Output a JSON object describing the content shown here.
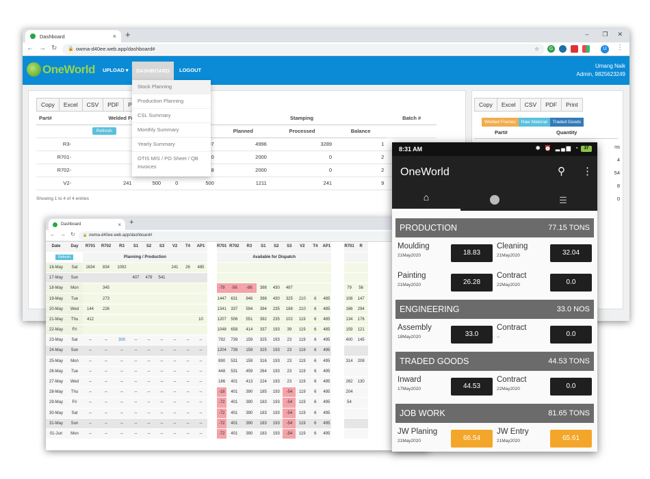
{
  "browser_main": {
    "tab_title": "Dashboard",
    "url": "owma-d40ee.web.app/dashboard#",
    "avatar_letter": "U",
    "ext_letter": "G"
  },
  "app": {
    "logo": "OneWorld",
    "nav": {
      "upload": "UPLOAD",
      "dashboard": "DASHBOARD",
      "logout": "LOGOUT"
    },
    "user_name": "Umang Naik",
    "user_role": "Admin, 9825623249",
    "dropdown": [
      "Stock Planning",
      "Production Planning",
      "CSL Summary",
      "Monthly Summary",
      "Yearly Summary",
      "OTIS MIS / PO Sheet / QB Invoices"
    ],
    "left_buttons": [
      "Copy",
      "Excel",
      "CSV",
      "PDF",
      "P"
    ],
    "right_buttons": [
      "Copy",
      "Excel",
      "CSV",
      "PDF",
      "Print"
    ],
    "refresh": "Refresh",
    "headers": {
      "part": "Part#",
      "welded": "Welded Frames",
      "total": "Total",
      "stamping": "Stamping",
      "planned": "Planned",
      "processed": "Processed",
      "balance": "Balance",
      "batch": "Batch #"
    },
    "rows": [
      {
        "part": "R3-",
        "c1": "",
        "c2": "",
        "c3": "2",
        "total": "1707",
        "planned": "4996",
        "processed": "3289",
        "balance": "1"
      },
      {
        "part": "R701-",
        "c1": "",
        "c2": "",
        "c3": "0",
        "total": "0",
        "planned": "2000",
        "processed": "0",
        "balance": "2"
      },
      {
        "part": "R702-",
        "c1": "",
        "c2": "",
        "c3": "8",
        "total": "-8",
        "planned": "2000",
        "processed": "0",
        "balance": "2"
      },
      {
        "part": "V2-",
        "c1": "241",
        "c2": "500",
        "c3": "0",
        "total": "500",
        "planned": "1211",
        "processed": "241",
        "balance": "9"
      }
    ],
    "showing": "Showing 1 to 4 of 4 entries",
    "filters": [
      "Welded Frames",
      "Raw Material",
      "Traded Goods"
    ],
    "right_headers": {
      "part": "Part#",
      "qty": "Quantity"
    },
    "right_partial": [
      "ns",
      "4",
      "54",
      "8",
      "0"
    ]
  },
  "browser_second": {
    "tab_title": "Dashboard",
    "url": "owma-d40ee.web.app/dashboard#",
    "refresh": "Refresh",
    "hdr_date": "Date",
    "hdr_day": "Day",
    "cols_a": [
      "R701",
      "R702",
      "R3",
      "S1",
      "S2",
      "S3",
      "V2",
      "T4",
      "AP1"
    ],
    "cols_b": [
      "R701",
      "R702",
      "R3",
      "S1",
      "S2",
      "S3",
      "V2",
      "T4",
      "AP1"
    ],
    "cols_c": [
      "R701",
      "R"
    ],
    "group_a": "Planning / Production",
    "group_b": "Available for Dispatch",
    "rows": [
      {
        "date": "16-May",
        "day": "Sat",
        "a": [
          "1634",
          "834",
          "1092",
          "",
          "",
          "",
          "241",
          "26",
          "485"
        ],
        "b": [
          "",
          "",
          "",
          "",
          "",
          "",
          "",
          "",
          ""
        ],
        "c": [
          "",
          ""
        ]
      },
      {
        "date": "17-May",
        "day": "Sun",
        "a": [
          "",
          "",
          "",
          "407",
          "479",
          "541",
          "",
          "",
          ""
        ],
        "b": [
          "",
          "",
          "",
          "",
          "",
          "",
          "",
          "",
          ""
        ],
        "c": [
          "",
          ""
        ]
      },
      {
        "date": "18-May",
        "day": "Mon",
        "a": [
          "",
          "345",
          "",
          "",
          "",
          "",
          "",
          "",
          ""
        ],
        "b": [
          "-79",
          "-56",
          "-86",
          "398",
          "430",
          "497",
          "",
          "",
          ""
        ],
        "c": [
          "79",
          "56"
        ]
      },
      {
        "date": "19-May",
        "day": "Tue",
        "a": [
          "",
          "273",
          "",
          "",
          "",
          "",
          "",
          "",
          ""
        ],
        "b": [
          "1447",
          "631",
          "946",
          "398",
          "430",
          "325",
          "210",
          "6",
          "485"
        ],
        "c": [
          "108",
          "147"
        ]
      },
      {
        "date": "20-May",
        "day": "Wed",
        "a": [
          "144",
          "226",
          "",
          "",
          "",
          "",
          "",
          "",
          ""
        ],
        "b": [
          "1341",
          "337",
          "594",
          "394",
          "235",
          "188",
          "210",
          "6",
          "485"
        ],
        "c": [
          "166",
          "294"
        ]
      },
      {
        "date": "21-May",
        "day": "Thu",
        "a": [
          "412",
          "",
          "",
          "",
          "",
          "",
          "",
          "",
          "10"
        ],
        "b": [
          "1207",
          "506",
          "551",
          "392",
          "235",
          "102",
          "119",
          "6",
          "485"
        ],
        "c": [
          "134",
          "176"
        ]
      },
      {
        "date": "22-May",
        "day": "Fri",
        "a": [
          "",
          "",
          "",
          "",
          "",
          "",
          "",
          "",
          ""
        ],
        "b": [
          "1048",
          "658",
          "414",
          "337",
          "193",
          "39",
          "119",
          "6",
          "485"
        ],
        "c": [
          "159",
          "121"
        ]
      },
      {
        "date": "23-May",
        "day": "Sat",
        "a": [
          "--",
          "--",
          "300",
          "--",
          "--",
          "--",
          "--",
          "--",
          "--"
        ],
        "b": [
          "792",
          "739",
          "159",
          "325",
          "193",
          "23",
          "119",
          "6",
          "495"
        ],
        "c": [
          "400",
          "145"
        ]
      },
      {
        "date": "24-May",
        "day": "Sun",
        "a": [
          "--",
          "--",
          "--",
          "--",
          "--",
          "--",
          "--",
          "--",
          "--"
        ],
        "b": [
          "1204",
          "739",
          "159",
          "325",
          "193",
          "23",
          "119",
          "6",
          "495"
        ],
        "c": [
          "",
          ""
        ]
      },
      {
        "date": "25-May",
        "day": "Mon",
        "a": [
          "--",
          "--",
          "--",
          "--",
          "--",
          "--",
          "--",
          "--",
          "--"
        ],
        "b": [
          "890",
          "531",
          "159",
          "316",
          "193",
          "23",
          "119",
          "6",
          "495"
        ],
        "c": [
          "314",
          "208"
        ]
      },
      {
        "date": "26-May",
        "day": "Tue",
        "a": [
          "--",
          "--",
          "--",
          "--",
          "--",
          "--",
          "--",
          "--",
          "--"
        ],
        "b": [
          "448",
          "531",
          "459",
          "264",
          "193",
          "23",
          "119",
          "6",
          "495"
        ],
        "c": [
          "",
          ""
        ]
      },
      {
        "date": "27-May",
        "day": "Wed",
        "a": [
          "--",
          "--",
          "--",
          "--",
          "--",
          "--",
          "--",
          "--",
          "--"
        ],
        "b": [
          "186",
          "401",
          "413",
          "224",
          "193",
          "23",
          "119",
          "6",
          "495"
        ],
        "c": [
          "262",
          "130"
        ]
      },
      {
        "date": "28-May",
        "day": "Thu",
        "a": [
          "--",
          "--",
          "--",
          "--",
          "--",
          "--",
          "--",
          "--",
          "--"
        ],
        "b": [
          "-18",
          "401",
          "390",
          "185",
          "193",
          "-54",
          "119",
          "6",
          "495"
        ],
        "c": [
          "204",
          ""
        ]
      },
      {
        "date": "29-May",
        "day": "Fri",
        "a": [
          "--",
          "--",
          "--",
          "--",
          "--",
          "--",
          "--",
          "--",
          "--"
        ],
        "b": [
          "-72",
          "401",
          "390",
          "183",
          "193",
          "-54",
          "119",
          "6",
          "495"
        ],
        "c": [
          "54",
          ""
        ]
      },
      {
        "date": "30-May",
        "day": "Sat",
        "a": [
          "--",
          "--",
          "--",
          "--",
          "--",
          "--",
          "--",
          "--",
          "--"
        ],
        "b": [
          "-72",
          "401",
          "390",
          "183",
          "193",
          "-54",
          "119",
          "6",
          "495"
        ],
        "c": [
          "",
          ""
        ]
      },
      {
        "date": "31-May",
        "day": "Sun",
        "a": [
          "--",
          "--",
          "--",
          "--",
          "--",
          "--",
          "--",
          "--",
          "--"
        ],
        "b": [
          "-72",
          "401",
          "390",
          "183",
          "193",
          "-54",
          "119",
          "6",
          "495"
        ],
        "c": [
          "",
          ""
        ]
      },
      {
        "date": "01-Jun",
        "day": "Mon",
        "a": [
          "--",
          "--",
          "--",
          "--",
          "--",
          "--",
          "--",
          "--",
          "--"
        ],
        "b": [
          "-72",
          "401",
          "390",
          "183",
          "193",
          "-54",
          "119",
          "6",
          "495"
        ],
        "c": [
          "",
          ""
        ]
      }
    ]
  },
  "phone": {
    "time": "8:31 AM",
    "battery": "37",
    "app_title": "OneWorld",
    "sections": [
      {
        "title": "PRODUCTION",
        "total": "77.15 TONS",
        "items": [
          {
            "name": "Moulding",
            "date": "21May2020",
            "value": "18.83",
            "style": "dark"
          },
          {
            "name": "Cleaning",
            "date": "21May2020",
            "value": "32.04",
            "style": "dark"
          },
          {
            "name": "Painting",
            "date": "21May2020",
            "value": "26.28",
            "style": "dark"
          },
          {
            "name": "Contract",
            "date": "22May2020",
            "value": "0.0",
            "style": "dark"
          }
        ]
      },
      {
        "title": "ENGINEERING",
        "total": "33.0 NOS",
        "items": [
          {
            "name": "Assembly",
            "date": "18May2020",
            "value": "33.0",
            "style": "dark"
          },
          {
            "name": "Contract",
            "date": "--",
            "value": "0.0",
            "style": "dark"
          }
        ]
      },
      {
        "title": "TRADED GOODS",
        "total": "44.53 TONS",
        "items": [
          {
            "name": "Inward",
            "date": "17May2020",
            "value": "44.53",
            "style": "dark"
          },
          {
            "name": "Contract",
            "date": "22May2020",
            "value": "0.0",
            "style": "dark"
          }
        ]
      },
      {
        "title": "JOB WORK",
        "total": "81.65 TONS",
        "items": [
          {
            "name": "JW Planing",
            "date": "21May2020",
            "value": "66.54",
            "style": "orange"
          },
          {
            "name": "JW Entry",
            "date": "21May2020",
            "value": "65.61",
            "style": "orange"
          }
        ]
      }
    ]
  }
}
